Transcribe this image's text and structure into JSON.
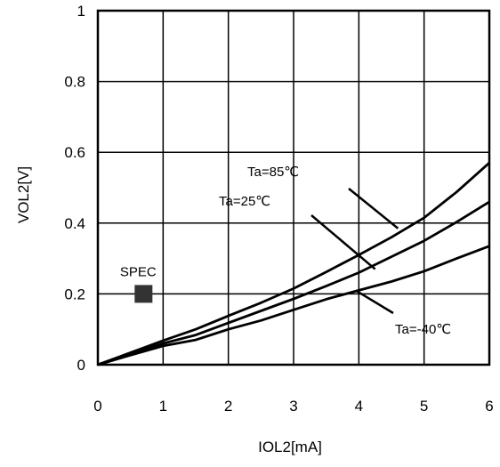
{
  "chart_data": {
    "type": "line",
    "title": "",
    "xlabel": "IOL2[mA]",
    "ylabel": "VOL2[V]",
    "xlim": [
      0,
      6
    ],
    "ylim": [
      0,
      1
    ],
    "xticks": [
      0,
      1,
      2,
      3,
      4,
      5,
      6
    ],
    "xtick_labels": [
      "0",
      "1",
      "2",
      "3",
      "4",
      "5",
      "6"
    ],
    "yticks": [
      0,
      0.2,
      0.4,
      0.6,
      0.8,
      1
    ],
    "ytick_labels": [
      "0",
      "0.2",
      "0.4",
      "0.6",
      "0.8",
      "1"
    ],
    "grid": true,
    "series": [
      {
        "name": "Ta=85℃",
        "x": [
          0,
          0.5,
          1,
          1.5,
          2,
          2.5,
          3,
          3.5,
          4,
          4.5,
          5,
          5.5,
          6
        ],
        "y": [
          0,
          0.034,
          0.068,
          0.1,
          0.138,
          0.175,
          0.215,
          0.262,
          0.31,
          0.36,
          0.415,
          0.488,
          0.57
        ]
      },
      {
        "name": "Ta=25℃",
        "x": [
          0,
          0.5,
          1,
          1.5,
          2,
          2.5,
          3,
          3.5,
          4,
          4.5,
          5,
          5.5,
          6
        ],
        "y": [
          0,
          0.03,
          0.06,
          0.084,
          0.118,
          0.152,
          0.186,
          0.222,
          0.26,
          0.305,
          0.35,
          0.403,
          0.46
        ]
      },
      {
        "name": "Ta=-40℃",
        "x": [
          0,
          0.5,
          1,
          1.5,
          2,
          2.5,
          3,
          3.5,
          4,
          4.5,
          5,
          5.5,
          6
        ],
        "y": [
          0,
          0.027,
          0.053,
          0.07,
          0.1,
          0.125,
          0.155,
          0.185,
          0.21,
          0.235,
          0.264,
          0.3,
          0.335
        ]
      }
    ],
    "annotations": {
      "spec": {
        "label": "SPEC",
        "x": 0.7,
        "y": 0.2
      },
      "ta85": {
        "label": "Ta=85℃",
        "target_x": 4.6,
        "target_y": 0.385
      },
      "ta25": {
        "label": "Ta=25℃",
        "target_x": 4.25,
        "target_y": 0.27
      },
      "ta_40": {
        "label": "Ta=-40℃",
        "target_x": 3.95,
        "target_y": 0.21
      }
    }
  }
}
